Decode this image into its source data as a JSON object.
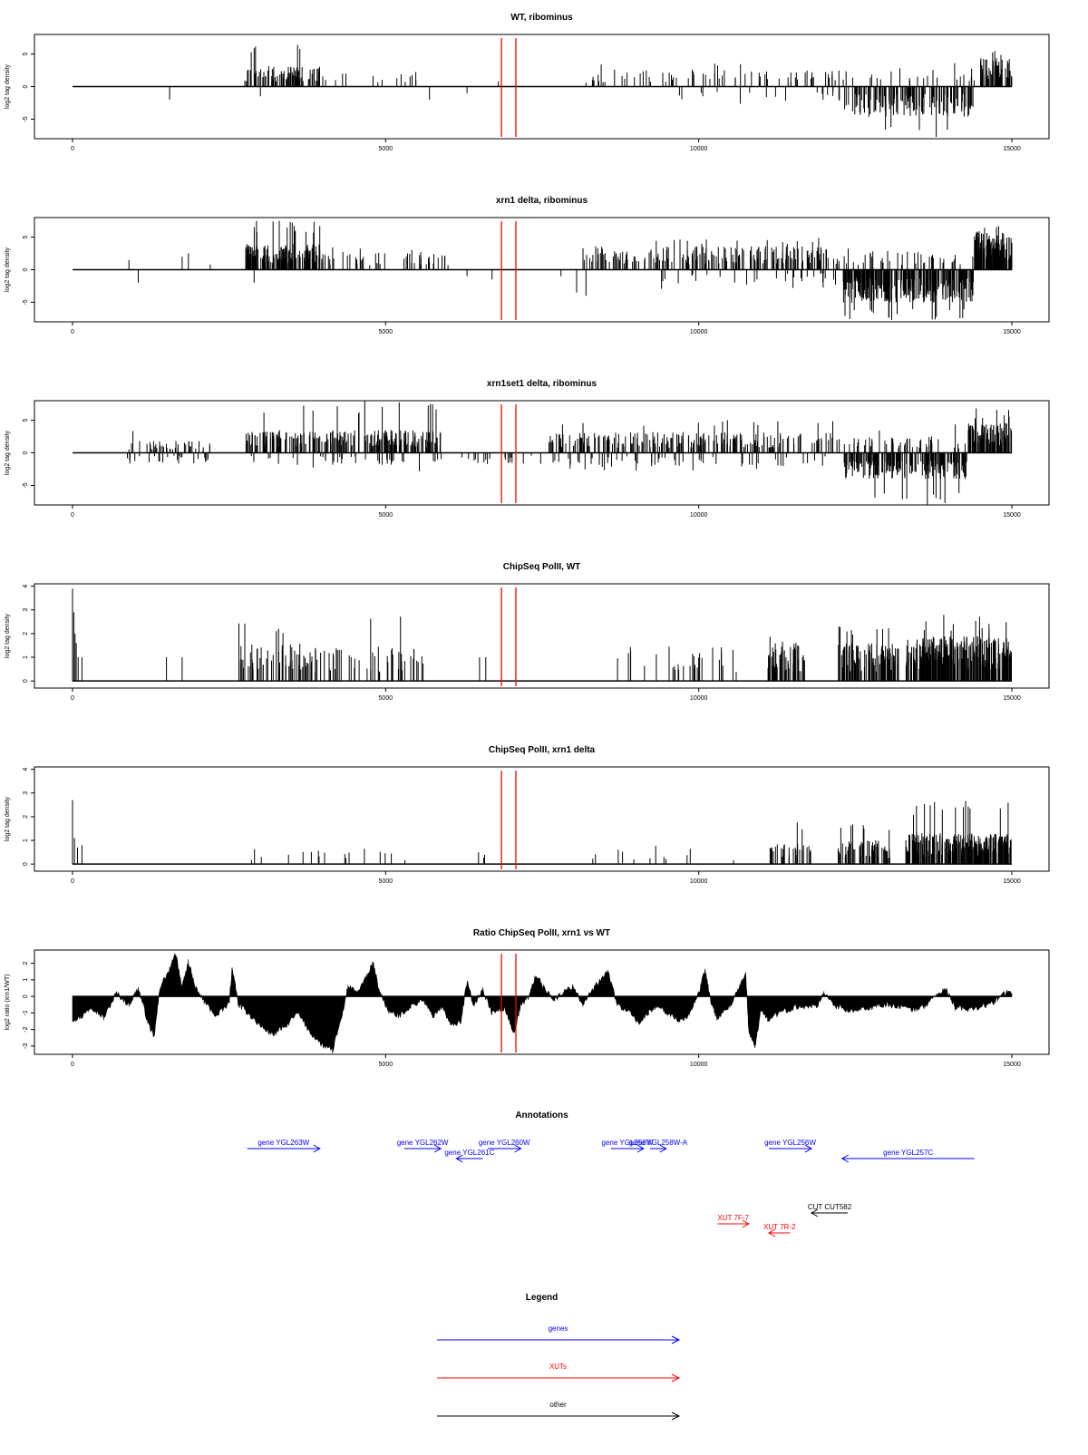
{
  "x_axis": {
    "ticks": [
      0,
      5000,
      10000,
      15000
    ],
    "tick_labels": [
      "0",
      "5000",
      "10000",
      "15000"
    ],
    "range": [
      0,
      15000
    ]
  },
  "red_markers": [
    6850,
    7080
  ],
  "chart_data": [
    {
      "type": "bar",
      "title": "WT, ribominus",
      "ylabel": "log2 tag density",
      "ylim": [
        -8,
        8
      ],
      "y_ticks": [
        -5,
        0,
        5
      ],
      "bars": {
        "seed": 11,
        "regions": [
          {
            "x0": 2750,
            "x1": 3950,
            "n": 80,
            "sign": 1,
            "mean": 2.2,
            "max": 7
          },
          {
            "x0": 3950,
            "x1": 5500,
            "n": 14,
            "sign": 1,
            "mean": 1.6,
            "max": 3
          },
          {
            "x0": 8300,
            "x1": 12300,
            "n": 70,
            "sign": 1,
            "mean": 1.8,
            "max": 4
          },
          {
            "x0": 9500,
            "x1": 12300,
            "n": 18,
            "sign": -1,
            "mean": 1.5,
            "max": 3
          },
          {
            "x0": 12300,
            "x1": 14400,
            "n": 140,
            "sign": -1,
            "mean": 3.2,
            "max": 8
          },
          {
            "x0": 12300,
            "x1": 14400,
            "n": 25,
            "sign": 1,
            "mean": 2,
            "max": 4
          },
          {
            "x0": 14500,
            "x1": 15000,
            "n": 60,
            "sign": 1,
            "mean": 3,
            "max": 5.5
          }
        ],
        "singles": [
          [
            1550,
            -2
          ],
          [
            5700,
            -2
          ],
          [
            6300,
            -1
          ],
          [
            6800,
            0.8
          ],
          [
            8200,
            0.6
          ],
          [
            3000,
            -1.5
          ],
          [
            4200,
            1
          ]
        ]
      }
    },
    {
      "type": "bar",
      "title": "xrn1 delta, ribominus",
      "ylabel": "log2 tag density",
      "ylim": [
        -8,
        8
      ],
      "y_ticks": [
        -5,
        0,
        5
      ],
      "bars": {
        "seed": 23,
        "regions": [
          {
            "x0": 2750,
            "x1": 3950,
            "n": 160,
            "sign": 1,
            "mean": 2.8,
            "max": 7.5
          },
          {
            "x0": 3950,
            "x1": 6000,
            "n": 50,
            "sign": 1,
            "mean": 2,
            "max": 3.5
          },
          {
            "x0": 8150,
            "x1": 12300,
            "n": 200,
            "sign": 1,
            "mean": 2.5,
            "max": 5
          },
          {
            "x0": 9400,
            "x1": 12300,
            "n": 30,
            "sign": -1,
            "mean": 1.6,
            "max": 3
          },
          {
            "x0": 12300,
            "x1": 14400,
            "n": 260,
            "sign": -1,
            "mean": 3.5,
            "max": 8
          },
          {
            "x0": 12300,
            "x1": 14400,
            "n": 40,
            "sign": 1,
            "mean": 2,
            "max": 4
          },
          {
            "x0": 14400,
            "x1": 15000,
            "n": 120,
            "sign": 1,
            "mean": 4,
            "max": 7
          }
        ],
        "singles": [
          [
            900,
            1.5
          ],
          [
            1050,
            -2
          ],
          [
            1750,
            2
          ],
          [
            1850,
            2.5
          ],
          [
            2200,
            0.8
          ],
          [
            2900,
            -2
          ],
          [
            6300,
            -1
          ],
          [
            6700,
            -1.5
          ],
          [
            7800,
            -1
          ],
          [
            8050,
            -3.5
          ],
          [
            8200,
            -4
          ]
        ]
      }
    },
    {
      "type": "bar",
      "title": "xrn1set1 delta, ribominus",
      "ylabel": "log2 tag density",
      "ylim": [
        -8,
        8
      ],
      "y_ticks": [
        -5,
        0,
        5
      ],
      "bars": {
        "seed": 37,
        "regions": [
          {
            "x0": 850,
            "x1": 2200,
            "n": 40,
            "sign": 1,
            "mean": 1.3,
            "max": 3.5
          },
          {
            "x0": 850,
            "x1": 2200,
            "n": 25,
            "sign": -1,
            "mean": 1.2,
            "max": 2.5
          },
          {
            "x0": 2750,
            "x1": 5900,
            "n": 240,
            "sign": 1,
            "mean": 2.4,
            "max": 8
          },
          {
            "x0": 2750,
            "x1": 5900,
            "n": 40,
            "sign": -1,
            "mean": 1.3,
            "max": 3
          },
          {
            "x0": 6200,
            "x1": 7600,
            "n": 20,
            "sign": -1,
            "mean": 1.2,
            "max": 2
          },
          {
            "x0": 7600,
            "x1": 12300,
            "n": 230,
            "sign": 1,
            "mean": 2.2,
            "max": 5
          },
          {
            "x0": 7600,
            "x1": 12300,
            "n": 60,
            "sign": -1,
            "mean": 1.5,
            "max": 3
          },
          {
            "x0": 12300,
            "x1": 14300,
            "n": 200,
            "sign": -1,
            "mean": 2.8,
            "max": 8
          },
          {
            "x0": 12300,
            "x1": 14300,
            "n": 50,
            "sign": 1,
            "mean": 1.8,
            "max": 4.5
          },
          {
            "x0": 14300,
            "x1": 15000,
            "n": 100,
            "sign": 1,
            "mean": 3.2,
            "max": 7
          }
        ],
        "singles": []
      }
    },
    {
      "type": "bar",
      "title": "ChipSeq PolII, WT",
      "ylabel": "log2 tag density",
      "ylim": [
        -0.3,
        4.1
      ],
      "y_ticks": [
        0,
        1,
        2,
        3,
        4
      ],
      "bars": {
        "seed": 53,
        "regions": [
          {
            "x0": 2600,
            "x1": 3700,
            "n": 60,
            "sign": 1,
            "mean": 1.1,
            "max": 2.6
          },
          {
            "x0": 3700,
            "x1": 5600,
            "n": 60,
            "sign": 1,
            "mean": 1,
            "max": 3.2
          },
          {
            "x0": 8600,
            "x1": 10600,
            "n": 30,
            "sign": 1,
            "mean": 1,
            "max": 1.6
          },
          {
            "x0": 11100,
            "x1": 11700,
            "n": 60,
            "sign": 1,
            "mean": 1.1,
            "max": 2
          },
          {
            "x0": 12200,
            "x1": 13200,
            "n": 100,
            "sign": 1,
            "mean": 1.1,
            "max": 2.3
          },
          {
            "x0": 13300,
            "x1": 15000,
            "n": 300,
            "sign": 1,
            "mean": 1.3,
            "max": 2.8
          }
        ],
        "singles": [
          [
            0,
            3.9
          ],
          [
            20,
            2.9
          ],
          [
            40,
            2
          ],
          [
            60,
            1.6
          ],
          [
            90,
            1
          ],
          [
            150,
            1
          ],
          [
            1500,
            1
          ],
          [
            1750,
            1
          ],
          [
            6500,
            1
          ],
          [
            6600,
            1
          ]
        ]
      }
    },
    {
      "type": "bar",
      "title": "ChipSeq PolII, xrn1 delta",
      "ylabel": "log2 tag density",
      "ylim": [
        -0.3,
        4.1
      ],
      "y_ticks": [
        0,
        1,
        2,
        3,
        4
      ],
      "bars": {
        "seed": 71,
        "regions": [
          {
            "x0": 2600,
            "x1": 6700,
            "n": 20,
            "sign": 1,
            "mean": 0.45,
            "max": 0.8
          },
          {
            "x0": 8100,
            "x1": 10600,
            "n": 12,
            "sign": 1,
            "mean": 0.45,
            "max": 0.8
          },
          {
            "x0": 11100,
            "x1": 11800,
            "n": 30,
            "sign": 1,
            "mean": 0.6,
            "max": 1.8
          },
          {
            "x0": 12200,
            "x1": 13100,
            "n": 60,
            "sign": 1,
            "mean": 0.7,
            "max": 1.8
          },
          {
            "x0": 13300,
            "x1": 15000,
            "n": 260,
            "sign": 1,
            "mean": 0.9,
            "max": 2.7
          }
        ],
        "singles": [
          [
            0,
            2.7
          ],
          [
            30,
            1.1
          ],
          [
            80,
            0.7
          ],
          [
            150,
            0.8
          ]
        ]
      }
    },
    {
      "type": "area",
      "title": "Ratio ChipSeq PolII, xrn1 vs WT",
      "ylabel": "log2 ratio (xrn1/WT)",
      "ylim": [
        -3.5,
        2.8
      ],
      "y_ticks": [
        -3,
        -2,
        -1,
        0,
        1,
        2
      ],
      "segments": [
        [
          0,
          -1.4
        ],
        [
          150,
          -1.2
        ],
        [
          300,
          -0.6
        ],
        [
          500,
          -1.3
        ],
        [
          700,
          0.2
        ],
        [
          900,
          -0.5
        ],
        [
          1050,
          0.5
        ],
        [
          1200,
          -1.5
        ],
        [
          1300,
          -2.5
        ],
        [
          1400,
          0.6
        ],
        [
          1550,
          1.6
        ],
        [
          1650,
          2.6
        ],
        [
          1750,
          0.5
        ],
        [
          1850,
          2.1
        ],
        [
          1950,
          0.6
        ],
        [
          2100,
          -0.3
        ],
        [
          2300,
          -1.2
        ],
        [
          2500,
          -0.4
        ],
        [
          2550,
          1.7
        ],
        [
          2650,
          -0.5
        ],
        [
          2800,
          -1
        ],
        [
          3000,
          -1.8
        ],
        [
          3200,
          -2.3
        ],
        [
          3400,
          -1.8
        ],
        [
          3600,
          -1
        ],
        [
          3800,
          -2.2
        ],
        [
          4000,
          -3
        ],
        [
          4150,
          -3.3
        ],
        [
          4300,
          -1.2
        ],
        [
          4400,
          0.6
        ],
        [
          4550,
          0.2
        ],
        [
          4700,
          1.2
        ],
        [
          4800,
          2
        ],
        [
          4900,
          0.3
        ],
        [
          5050,
          -0.9
        ],
        [
          5200,
          -1.2
        ],
        [
          5400,
          -0.6
        ],
        [
          5600,
          -0.2
        ],
        [
          5750,
          -1.2
        ],
        [
          5900,
          -0.6
        ],
        [
          6050,
          -1.8
        ],
        [
          6200,
          -1.5
        ],
        [
          6300,
          0.9
        ],
        [
          6400,
          -0.5
        ],
        [
          6550,
          0.4
        ],
        [
          6700,
          -1
        ],
        [
          6900,
          -0.7
        ],
        [
          7050,
          -2.2
        ],
        [
          7150,
          -0.6
        ],
        [
          7300,
          0.1
        ],
        [
          7400,
          1.3
        ],
        [
          7550,
          0.4
        ],
        [
          7700,
          -0.2
        ],
        [
          7850,
          0.3
        ],
        [
          8000,
          0.6
        ],
        [
          8150,
          -0.5
        ],
        [
          8350,
          0.6
        ],
        [
          8550,
          1.5
        ],
        [
          8700,
          -0.5
        ],
        [
          8900,
          -1
        ],
        [
          9050,
          -1.6
        ],
        [
          9200,
          -1
        ],
        [
          9350,
          -0.5
        ],
        [
          9500,
          -1
        ],
        [
          9700,
          -1.5
        ],
        [
          9850,
          -1.1
        ],
        [
          10000,
          0.2
        ],
        [
          10100,
          1.6
        ],
        [
          10200,
          -0.4
        ],
        [
          10300,
          -1.4
        ],
        [
          10500,
          -0.6
        ],
        [
          10650,
          0.5
        ],
        [
          10750,
          1.4
        ],
        [
          10800,
          -2.1
        ],
        [
          10900,
          -3
        ],
        [
          11000,
          -0.7
        ],
        [
          11100,
          -1.4
        ],
        [
          11300,
          -1
        ],
        [
          11500,
          -0.7
        ],
        [
          11700,
          -0.6
        ],
        [
          11900,
          -0.5
        ],
        [
          12000,
          0.2
        ],
        [
          12200,
          -0.6
        ],
        [
          12400,
          -0.9
        ],
        [
          12600,
          -0.8
        ],
        [
          12800,
          -0.6
        ],
        [
          13000,
          -0.5
        ],
        [
          13200,
          -0.6
        ],
        [
          13400,
          -0.8
        ],
        [
          13600,
          -0.6
        ],
        [
          13800,
          0.1
        ],
        [
          13950,
          0.4
        ],
        [
          14100,
          -0.7
        ],
        [
          14300,
          -0.8
        ],
        [
          14500,
          -0.6
        ],
        [
          14700,
          -0.4
        ],
        [
          14850,
          0.1
        ],
        [
          15000,
          0.3
        ]
      ]
    }
  ],
  "annotations": {
    "title": "Annotations",
    "genes_color": "#0000ff",
    "xut_color": "#ff0000",
    "other_color": "#000000",
    "features": [
      {
        "label": "gene YGL263W",
        "cls": "gene",
        "start": 2790,
        "end": 3950,
        "dir": 1,
        "row": 0
      },
      {
        "label": "gene YGL262W",
        "cls": "gene",
        "start": 5300,
        "end": 5880,
        "dir": 1,
        "row": 0
      },
      {
        "label": "gene YGL261C",
        "cls": "gene",
        "start": 6130,
        "end": 6550,
        "dir": -1,
        "row": 1
      },
      {
        "label": "gene YGL260W",
        "cls": "gene",
        "start": 6630,
        "end": 7160,
        "dir": 1,
        "row": 0
      },
      {
        "label": "gene YGL258W",
        "cls": "gene",
        "start": 8600,
        "end": 9120,
        "dir": 1,
        "row": 0
      },
      {
        "label": "gene YGL258W-A",
        "cls": "gene",
        "start": 9220,
        "end": 9480,
        "dir": 1,
        "row": 0
      },
      {
        "label": "gene YGL256W",
        "cls": "gene",
        "start": 11120,
        "end": 11800,
        "dir": 1,
        "row": 0
      },
      {
        "label": "gene YGL257C",
        "cls": "gene",
        "start": 12290,
        "end": 14400,
        "dir": -1,
        "row": 1
      },
      {
        "label": "CUT CUT582",
        "cls": "other",
        "start": 11800,
        "end": 12380,
        "dir": -1,
        "row": 2
      },
      {
        "label": "XUT 7F-7",
        "cls": "xut",
        "start": 10300,
        "end": 10800,
        "dir": 1,
        "row": 3
      },
      {
        "label": "XUT 7R-2",
        "cls": "xut",
        "start": 11120,
        "end": 11460,
        "dir": -1,
        "row": 4
      }
    ]
  },
  "legend": {
    "title": "Legend",
    "items": [
      {
        "label": "genes",
        "color": "#0000ff"
      },
      {
        "label": "XUTs",
        "color": "#ff0000"
      },
      {
        "label": "other",
        "color": "#000000"
      }
    ]
  }
}
